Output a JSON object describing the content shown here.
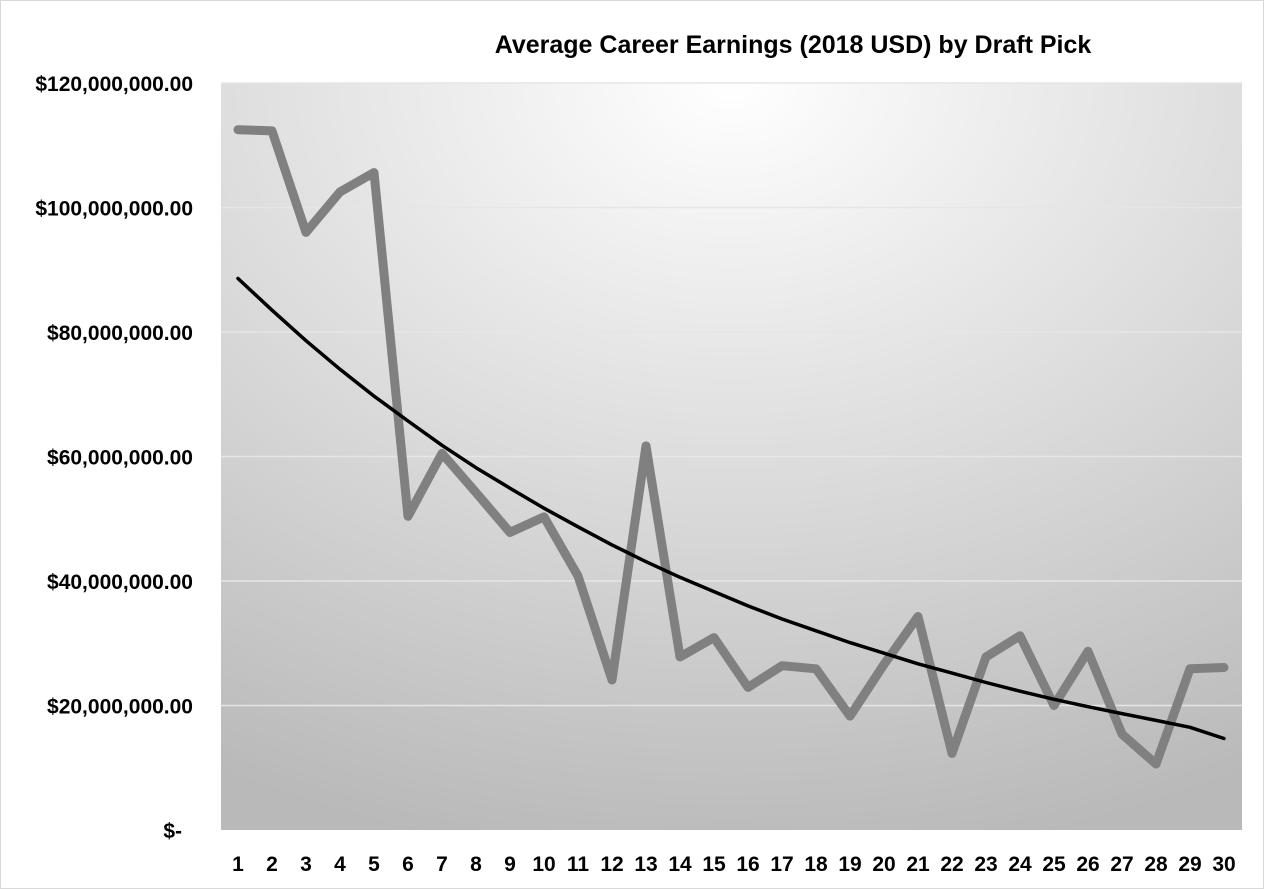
{
  "chart_data": {
    "type": "line",
    "title": "Average Career Earnings (2018 USD) by Draft Pick",
    "xlabel": "",
    "ylabel": "",
    "categories": [
      "1",
      "2",
      "3",
      "4",
      "5",
      "6",
      "7",
      "8",
      "9",
      "10",
      "11",
      "12",
      "13",
      "14",
      "15",
      "16",
      "17",
      "18",
      "19",
      "20",
      "21",
      "22",
      "23",
      "24",
      "25",
      "26",
      "27",
      "28",
      "29",
      "30"
    ],
    "y_tick_labels": [
      "$-",
      "$20,000,000.00",
      "$40,000,000.00",
      "$60,000,000.00",
      "$80,000,000.00",
      "$100,000,000.00",
      "$120,000,000.00"
    ],
    "y_tick_values": [
      0,
      20000000,
      40000000,
      60000000,
      80000000,
      100000000,
      120000000
    ],
    "ylim": [
      0,
      120000000
    ],
    "grid": "horizontal",
    "legend": "none",
    "series": [
      {
        "values": [
          112500000,
          112300000,
          96000000,
          102500000,
          105600000,
          50400000,
          60500000,
          54200000,
          47800000,
          50300000,
          40800000,
          24100000,
          61700000,
          27800000,
          30900000,
          22900000,
          26400000,
          25900000,
          18300000,
          26600000,
          34300000,
          12300000,
          27800000,
          31200000,
          20000000,
          28700000,
          15400000,
          10600000,
          25900000,
          26100000
        ],
        "color": "#808080"
      },
      {
        "values": [
          88600000,
          83500000,
          78600000,
          74000000,
          69700000,
          65700000,
          61800000,
          58200000,
          54900000,
          51700000,
          48700000,
          45800000,
          43100000,
          40600000,
          38300000,
          36000000,
          33900000,
          32000000,
          30100000,
          28400000,
          26700000,
          25200000,
          23700000,
          22300000,
          21000000,
          19800000,
          18700000,
          17600000,
          16500000,
          14700000
        ],
        "color": "#000000"
      }
    ]
  }
}
